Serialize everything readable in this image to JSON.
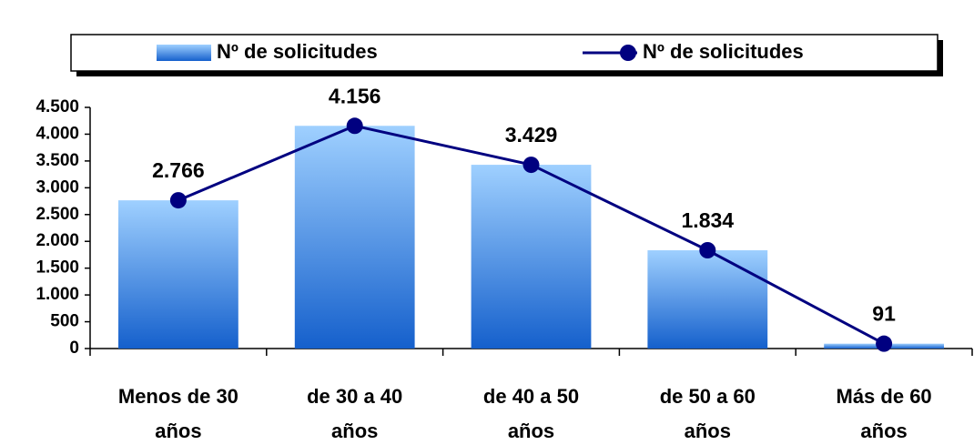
{
  "chart_data": {
    "type": "bar",
    "categories": [
      "Menos de 30 años",
      "de 30 a 40 años",
      "de 40 a 50 años",
      "de 50 a 60 años",
      "Más de 60 años"
    ],
    "series": [
      {
        "name": "Nº de solicitudes",
        "type": "bar",
        "color": "#4a8fe0",
        "values": [
          2766,
          4156,
          3429,
          1834,
          91
        ]
      },
      {
        "name": "Nº de solicitudes",
        "type": "line",
        "color": "#000080",
        "values": [
          2766,
          4156,
          3429,
          1834,
          91
        ],
        "value_labels": [
          "2.766",
          "4.156",
          "3.429",
          "1.834",
          "91"
        ]
      }
    ],
    "ylim": [
      0,
      4500
    ],
    "yticks": [
      0,
      500,
      {
        "value": 1000,
        "label": "1.000"
      },
      {
        "value": 1500,
        "label": "1.500"
      },
      {
        "value": 2000,
        "label": "2.000"
      },
      {
        "value": 2500,
        "label": "2.500"
      },
      {
        "value": 3000,
        "label": "3.000"
      },
      {
        "value": 3500,
        "label": "3.500"
      },
      {
        "value": 4000,
        "label": "4.000"
      },
      {
        "value": 4500,
        "label": "4.500"
      }
    ],
    "legend": "top"
  }
}
